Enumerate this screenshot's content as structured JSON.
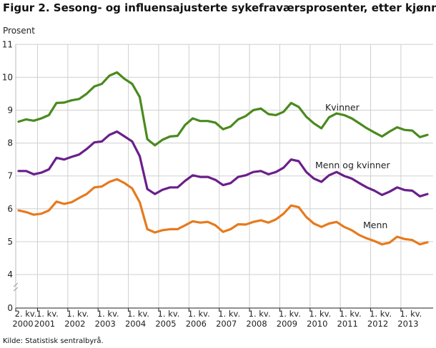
{
  "title": "Figur 2. Sesong- og influensajusterte sykefraværsprosenter, etter kjønn",
  "source": "Kilde: Statistisk sentralbyrå.",
  "chart_data": {
    "type": "line",
    "title": "Figur 2. Sesong- og influensajusterte sykefraværsprosenter, etter kjønn",
    "ylabel": "Prosent",
    "xlabel": "",
    "ylim": [
      0,
      11
    ],
    "y_axis_break": true,
    "yticks": [
      0,
      4,
      5,
      6,
      7,
      8,
      9,
      10,
      11
    ],
    "grid": true,
    "legend": "inline labels at line ends",
    "x_tick_labels": [
      {
        "quarter": "2. kv.",
        "year": "2000",
        "index": 0
      },
      {
        "quarter": "1. kv.",
        "year": "2001",
        "index": 3
      },
      {
        "quarter": "1. kv.",
        "year": "2002",
        "index": 7
      },
      {
        "quarter": "1. kv.",
        "year": "2003",
        "index": 11
      },
      {
        "quarter": "1. kv.",
        "year": "2004",
        "index": 15
      },
      {
        "quarter": "1. kv.",
        "year": "2005",
        "index": 19
      },
      {
        "quarter": "1. kv.",
        "year": "2006",
        "index": 23
      },
      {
        "quarter": "1. kv.",
        "year": "2007",
        "index": 27
      },
      {
        "quarter": "1. kv.",
        "year": "2008",
        "index": 31
      },
      {
        "quarter": "1. kv.",
        "year": "2009",
        "index": 35
      },
      {
        "quarter": "1. kv.",
        "year": "2010",
        "index": 39
      },
      {
        "quarter": "1. kv.",
        "year": "2011",
        "index": 43
      },
      {
        "quarter": "1. kv.",
        "year": "2012",
        "index": 47
      },
      {
        "quarter": "1. kv.",
        "year": "2013",
        "index": 51
      }
    ],
    "series": [
      {
        "name": "Kvinner",
        "color": "#4a8a1e",
        "values": [
          8.65,
          8.72,
          8.68,
          8.75,
          8.85,
          9.22,
          9.23,
          9.3,
          9.34,
          9.5,
          9.72,
          9.8,
          10.05,
          10.15,
          9.95,
          9.8,
          9.4,
          8.12,
          7.93,
          8.1,
          8.2,
          8.22,
          8.55,
          8.75,
          8.67,
          8.67,
          8.62,
          8.42,
          8.5,
          8.72,
          8.82,
          9.0,
          9.05,
          8.88,
          8.85,
          8.95,
          9.22,
          9.1,
          8.8,
          8.6,
          8.45,
          8.78,
          8.9,
          8.85,
          8.75,
          8.6,
          8.45,
          8.32,
          8.2,
          8.35,
          8.48,
          8.4,
          8.38,
          8.18,
          8.25
        ]
      },
      {
        "name": "Menn og kvinner",
        "color": "#6a1f8a",
        "values": [
          7.15,
          7.15,
          7.05,
          7.1,
          7.2,
          7.55,
          7.5,
          7.58,
          7.65,
          7.82,
          8.02,
          8.05,
          8.25,
          8.35,
          8.2,
          8.05,
          7.6,
          6.6,
          6.45,
          6.58,
          6.65,
          6.65,
          6.85,
          7.02,
          6.97,
          6.97,
          6.88,
          6.72,
          6.78,
          6.97,
          7.02,
          7.12,
          7.15,
          7.05,
          7.12,
          7.25,
          7.5,
          7.45,
          7.12,
          6.92,
          6.82,
          7.02,
          7.12,
          7.0,
          6.92,
          6.78,
          6.65,
          6.55,
          6.42,
          6.52,
          6.65,
          6.57,
          6.55,
          6.38,
          6.45
        ]
      },
      {
        "name": "Menn",
        "color": "#e67a1e",
        "values": [
          5.95,
          5.9,
          5.82,
          5.85,
          5.95,
          6.22,
          6.15,
          6.2,
          6.33,
          6.45,
          6.65,
          6.68,
          6.82,
          6.9,
          6.78,
          6.62,
          6.2,
          5.38,
          5.28,
          5.35,
          5.38,
          5.38,
          5.5,
          5.62,
          5.58,
          5.6,
          5.5,
          5.3,
          5.38,
          5.53,
          5.52,
          5.6,
          5.65,
          5.58,
          5.68,
          5.85,
          6.1,
          6.05,
          5.75,
          5.55,
          5.45,
          5.55,
          5.6,
          5.45,
          5.35,
          5.2,
          5.1,
          5.02,
          4.92,
          4.97,
          5.15,
          5.08,
          5.05,
          4.92,
          4.98
        ]
      }
    ]
  }
}
